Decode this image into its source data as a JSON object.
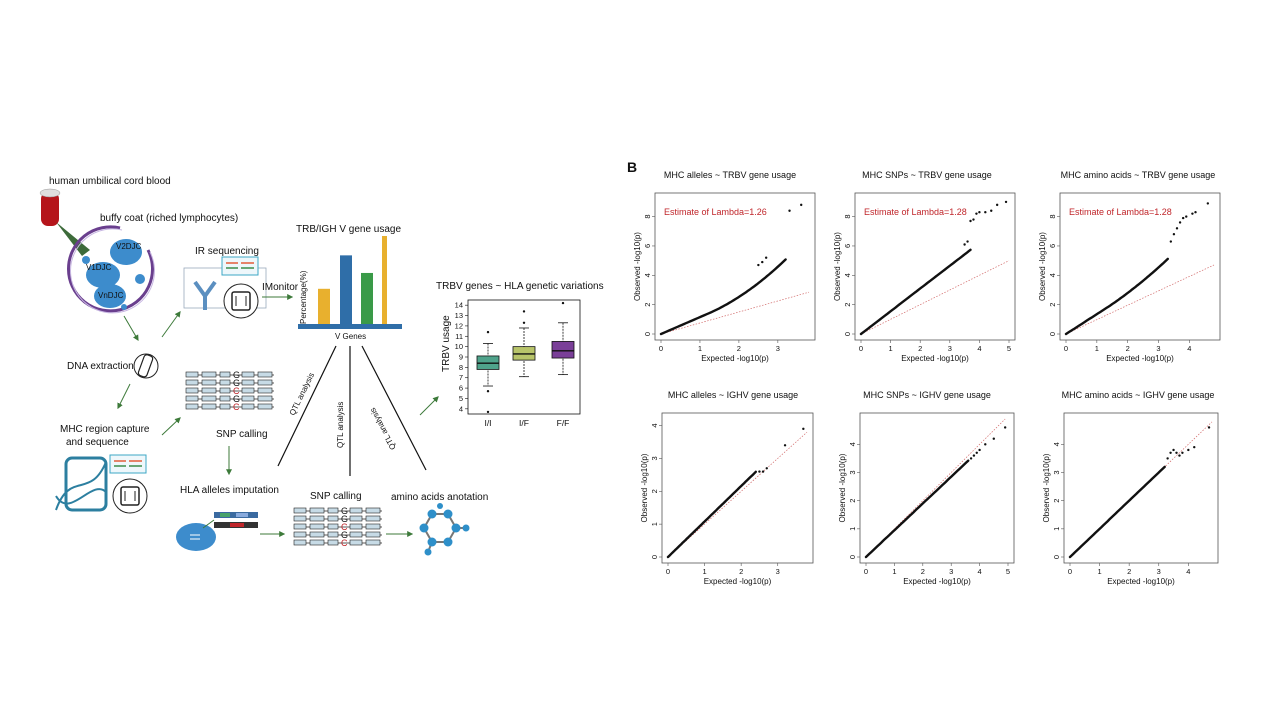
{
  "panel_a": {
    "source_label": "human umbilical cord blood",
    "buffy_coat_label": "buffy coat (riched lymphocytes)",
    "cell_labels": [
      "V2DJC",
      "V1DJC",
      "VnDJC"
    ],
    "ir_sequencing_label": "IR sequencing",
    "imonitor_label": "IMonitor",
    "dna_extraction_label": "DNA extraction",
    "mhc_capture_label_line1": "MHC region capture",
    "mhc_capture_label_line2": "and sequence",
    "snp_calling_label_1": "SNP calling",
    "hla_imputation_label": "HLA alleles imputation",
    "snp_calling_label_2": "SNP calling",
    "amino_acids_label": "amino acids anotation",
    "qtl_labels": [
      "QTL analysis",
      "QTL analysis",
      "QTL analysis"
    ],
    "snp_letters": [
      "G",
      "G",
      "C",
      "G",
      "C"
    ]
  },
  "chart_data": [
    {
      "type": "bar",
      "title": "TRB/IGH V gene usage",
      "xlabel": "V  Genes",
      "ylabel": "Percentage(%)",
      "values": [
        40,
        78,
        58,
        100
      ],
      "colors": [
        "#e8b02e",
        "#2f6ea8",
        "#3a9a48",
        "#e8b02e"
      ]
    },
    {
      "type": "box",
      "title": "TRBV genes ~ HLA genetic variations",
      "ylabel": "TRBV usage",
      "ylim": [
        3.5,
        14.5
      ],
      "yticks": [
        4,
        5,
        6,
        7,
        8,
        9,
        10,
        11,
        12,
        13,
        14
      ],
      "categories": [
        "I/I",
        "I/F",
        "F/F"
      ],
      "colors": [
        "#4fa38b",
        "#b8c46a",
        "#7a3f98"
      ],
      "boxes": [
        {
          "q1": 7.8,
          "median": 8.4,
          "q3": 9.1,
          "low": 6.2,
          "high": 10.3,
          "outliers": [
            11.4,
            5.7,
            3.7
          ]
        },
        {
          "q1": 8.7,
          "median": 9.3,
          "q3": 10.0,
          "low": 7.1,
          "high": 11.8,
          "outliers": [
            12.3,
            13.4
          ]
        },
        {
          "q1": 8.9,
          "median": 9.6,
          "q3": 10.5,
          "low": 7.3,
          "high": 12.3,
          "outliers": [
            14.2
          ]
        }
      ]
    },
    {
      "type": "scatter",
      "title": "MHC alleles ~ TRBV gene usage",
      "xlabel": "Expected -log10(p)",
      "ylabel": "Observed -log10(p)",
      "annotation": "Estimate of Lambda=1.26",
      "xticks": [
        0,
        1,
        2,
        3
      ],
      "yticks": [
        0,
        2,
        4,
        6,
        8
      ],
      "xlim": [
        0,
        3.8
      ],
      "ylim": [
        0,
        9.2
      ],
      "max_x": 3.2,
      "main_slope": 1.15,
      "curve": 0.35,
      "reference_slope": 0.75,
      "top_points": [
        [
          2.5,
          4.7
        ],
        [
          2.6,
          4.9
        ],
        [
          2.7,
          5.2
        ],
        [
          3.3,
          8.4
        ],
        [
          3.6,
          8.8
        ]
      ]
    },
    {
      "type": "scatter",
      "title": "MHC SNPs ~ TRBV gene usage",
      "xlabel": "Expected -log10(p)",
      "ylabel": "Observed -log10(p)",
      "annotation": "Estimate of Lambda=1.28",
      "xticks": [
        0,
        1,
        2,
        3,
        4,
        5
      ],
      "yticks": [
        0,
        2,
        4,
        6,
        8
      ],
      "xlim": [
        0,
        5
      ],
      "ylim": [
        0,
        9.2
      ],
      "max_x": 3.7,
      "main_slope": 1.55,
      "curve": 0.0,
      "reference_slope": 1.0,
      "top_points": [
        [
          3.5,
          6.1
        ],
        [
          3.6,
          6.3
        ],
        [
          3.7,
          7.7
        ],
        [
          3.8,
          7.8
        ],
        [
          3.9,
          8.2
        ],
        [
          4.0,
          8.3
        ],
        [
          4.2,
          8.3
        ],
        [
          4.4,
          8.4
        ],
        [
          4.6,
          8.8
        ],
        [
          4.9,
          9.0
        ]
      ]
    },
    {
      "type": "scatter",
      "title": "MHC amino acids ~ TRBV gene usage",
      "xlabel": "Expected -log10(p)",
      "ylabel": "Observed -log10(p)",
      "annotation": "Estimate of Lambda=1.28",
      "xticks": [
        0,
        1,
        2,
        3,
        4
      ],
      "yticks": [
        0,
        2,
        4,
        6,
        8
      ],
      "xlim": [
        0,
        4.8
      ],
      "ylim": [
        0,
        9.2
      ],
      "max_x": 3.3,
      "main_slope": 1.35,
      "curve": 0.15,
      "reference_slope": 0.98,
      "top_points": [
        [
          3.4,
          6.3
        ],
        [
          3.5,
          6.8
        ],
        [
          3.6,
          7.2
        ],
        [
          3.7,
          7.6
        ],
        [
          3.8,
          7.9
        ],
        [
          3.9,
          8.0
        ],
        [
          4.1,
          8.2
        ],
        [
          4.2,
          8.3
        ],
        [
          4.6,
          8.9
        ]
      ]
    },
    {
      "type": "scatter",
      "title": "MHC alleles ~ IGHV gene usage",
      "xlabel": "Expected -log10(p)",
      "ylabel": "Observed -log10(p)",
      "annotation": "",
      "xticks": [
        0,
        1,
        2,
        3
      ],
      "yticks": [
        0,
        1,
        2,
        3,
        4
      ],
      "xlim": [
        0,
        3.8
      ],
      "ylim": [
        0,
        4.2
      ],
      "max_x": 2.4,
      "main_slope": 1.08,
      "curve": 0.0,
      "reference_slope": 1.0,
      "top_points": [
        [
          2.5,
          2.6
        ],
        [
          2.6,
          2.6
        ],
        [
          2.7,
          2.7
        ],
        [
          3.2,
          3.4
        ],
        [
          3.7,
          3.9
        ]
      ]
    },
    {
      "type": "scatter",
      "title": "MHC SNPs ~ IGHV gene usage",
      "xlabel": "Expected -log10(p)",
      "ylabel": "Observed -log10(p)",
      "annotation": "",
      "xticks": [
        0,
        1,
        2,
        3,
        4,
        5
      ],
      "yticks": [
        0,
        1,
        2,
        3,
        4
      ],
      "xlim": [
        0,
        5
      ],
      "ylim": [
        0,
        4.9
      ],
      "max_x": 3.6,
      "main_slope": 0.95,
      "curve": 0.0,
      "reference_slope": 1.0,
      "top_points": [
        [
          3.7,
          3.5
        ],
        [
          3.8,
          3.6
        ],
        [
          3.9,
          3.7
        ],
        [
          4.0,
          3.8
        ],
        [
          4.2,
          4.0
        ],
        [
          4.5,
          4.2
        ],
        [
          4.9,
          4.6
        ]
      ]
    },
    {
      "type": "scatter",
      "title": "MHC amino acids ~ IGHV gene usage",
      "xlabel": "Expected -log10(p)",
      "ylabel": "Observed -log10(p)",
      "annotation": "",
      "xticks": [
        0,
        1,
        2,
        3,
        4
      ],
      "yticks": [
        0,
        1,
        2,
        3,
        4
      ],
      "xlim": [
        0,
        4.8
      ],
      "ylim": [
        0,
        4.9
      ],
      "max_x": 3.2,
      "main_slope": 1.0,
      "curve": 0.0,
      "reference_slope": 1.0,
      "top_points": [
        [
          3.3,
          3.5
        ],
        [
          3.4,
          3.7
        ],
        [
          3.5,
          3.8
        ],
        [
          3.6,
          3.7
        ],
        [
          3.7,
          3.6
        ],
        [
          3.8,
          3.7
        ],
        [
          4.0,
          3.8
        ],
        [
          4.2,
          3.9
        ],
        [
          4.7,
          4.6
        ]
      ]
    }
  ],
  "panel_b_label": "B"
}
